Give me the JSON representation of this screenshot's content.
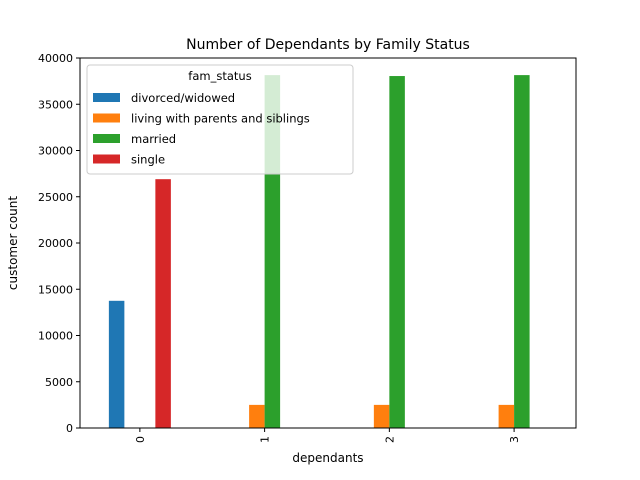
{
  "chart_data": {
    "type": "bar",
    "title": "Number of Dependants by Family Status",
    "xlabel": "dependants",
    "ylabel": "customer count",
    "categories": [
      "0",
      "1",
      "2",
      "3"
    ],
    "ylim": [
      0,
      40000
    ],
    "yticks": [
      0,
      5000,
      10000,
      15000,
      20000,
      25000,
      30000,
      35000,
      40000
    ],
    "legend_title": "fam_status",
    "legend_position": "top-left",
    "grid": false,
    "series": [
      {
        "name": "divorced/widowed",
        "color": "#1f77b4",
        "values": [
          13750,
          0,
          0,
          0
        ]
      },
      {
        "name": "living with parents and siblings",
        "color": "#ff7f0e",
        "values": [
          0,
          2500,
          2500,
          2500
        ]
      },
      {
        "name": "married",
        "color": "#2ca02c",
        "values": [
          0,
          38150,
          38050,
          38150
        ]
      },
      {
        "name": "single",
        "color": "#d62728",
        "values": [
          26900,
          0,
          0,
          0
        ]
      }
    ]
  }
}
